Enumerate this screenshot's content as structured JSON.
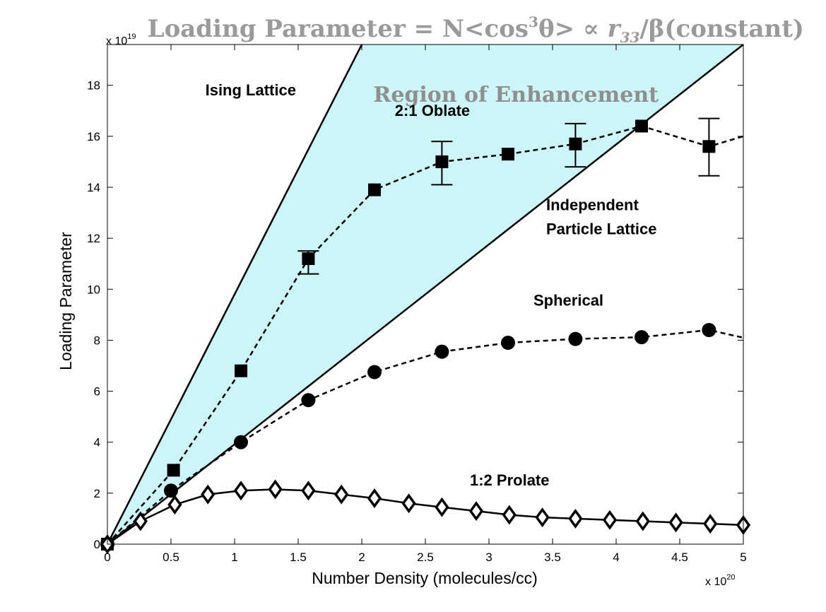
{
  "chart_data": {
    "type": "line",
    "title_parts": {
      "prefix": "Loading Parameter = N<cos",
      "sup": "3",
      "mid": "θ> ∝ ",
      "r": "r",
      "sub": "33",
      "suffix": "/β(constant)"
    },
    "xlabel": "Number Density (molecules/cc)",
    "ylabel": "Loading Parameter",
    "x_exponent": {
      "base": "x 10",
      "power": "20"
    },
    "y_exponent": {
      "base": "x 10",
      "power": "19"
    },
    "xlim": [
      0,
      5
    ],
    "ylim": [
      0,
      19.6
    ],
    "xticks": [
      "0",
      "0.5",
      "1",
      "1.5",
      "2",
      "2.5",
      "3",
      "3.5",
      "4",
      "4.5",
      "5"
    ],
    "yticks": [
      "0",
      "2",
      "4",
      "6",
      "8",
      "10",
      "12",
      "14",
      "16",
      "18"
    ],
    "shaded_region": {
      "label": "Region of Enhancement",
      "color": "#ccf5f7"
    },
    "reference_lines": [
      {
        "name": "Ising Lattice",
        "x": [
          0,
          2.0
        ],
        "y": [
          0,
          19.6
        ]
      },
      {
        "name": "Independent Particle Lattice",
        "x": [
          0,
          5.0
        ],
        "y": [
          0,
          19.6
        ]
      }
    ],
    "series": [
      {
        "name": "2:1 Oblate",
        "marker": "square",
        "line": "dashed",
        "x": [
          0,
          0.52,
          1.05,
          1.58,
          2.1,
          2.63,
          3.15,
          3.68,
          4.2,
          4.73,
          5.0
        ],
        "y": [
          0,
          2.9,
          6.8,
          11.2,
          13.9,
          15.0,
          15.3,
          15.7,
          16.4,
          15.6,
          16.0
        ],
        "markers_shown": [
          true,
          true,
          true,
          true,
          true,
          true,
          true,
          true,
          true,
          true,
          false
        ],
        "error": [
          null,
          null,
          null,
          [
            10.6,
            11.5
          ],
          null,
          [
            14.1,
            15.8
          ],
          null,
          [
            14.8,
            16.5
          ],
          null,
          [
            14.45,
            16.7
          ],
          null
        ]
      },
      {
        "name": "Spherical",
        "marker": "circle",
        "line": "dashed",
        "x": [
          0,
          0.5,
          1.05,
          1.58,
          2.1,
          2.63,
          3.15,
          3.68,
          4.2,
          4.73,
          5.0
        ],
        "y": [
          0,
          2.1,
          4.0,
          5.65,
          6.75,
          7.55,
          7.9,
          8.05,
          8.12,
          8.4,
          8.1
        ],
        "markers_shown": [
          true,
          true,
          true,
          true,
          true,
          true,
          true,
          true,
          true,
          true,
          false
        ]
      },
      {
        "name": "1:2 Prolate",
        "marker": "diamond",
        "line": "solid",
        "x": [
          0,
          0.26,
          0.53,
          0.79,
          1.05,
          1.32,
          1.58,
          1.84,
          2.1,
          2.37,
          2.63,
          2.9,
          3.16,
          3.42,
          3.68,
          3.95,
          4.21,
          4.47,
          4.74,
          5.0
        ],
        "y": [
          0,
          0.9,
          1.55,
          1.95,
          2.1,
          2.15,
          2.1,
          1.95,
          1.8,
          1.6,
          1.45,
          1.3,
          1.15,
          1.05,
          1.0,
          0.95,
          0.9,
          0.85,
          0.8,
          0.75
        ]
      }
    ],
    "annotations": [
      {
        "text": "Ising Lattice",
        "x": 0.77,
        "y": 17.6,
        "anchor": "start"
      },
      {
        "text": "2:1 Oblate",
        "x": 2.26,
        "y": 16.8,
        "anchor": "start"
      },
      {
        "text": "Independent",
        "x": 3.45,
        "y": 13.1,
        "anchor": "start"
      },
      {
        "text": "Particle Lattice",
        "x": 3.45,
        "y": 12.15,
        "anchor": "start"
      },
      {
        "text": "Spherical",
        "x": 3.35,
        "y": 9.35,
        "anchor": "start"
      },
      {
        "text": "1:2 Prolate",
        "x": 2.85,
        "y": 2.3,
        "anchor": "start"
      }
    ]
  }
}
